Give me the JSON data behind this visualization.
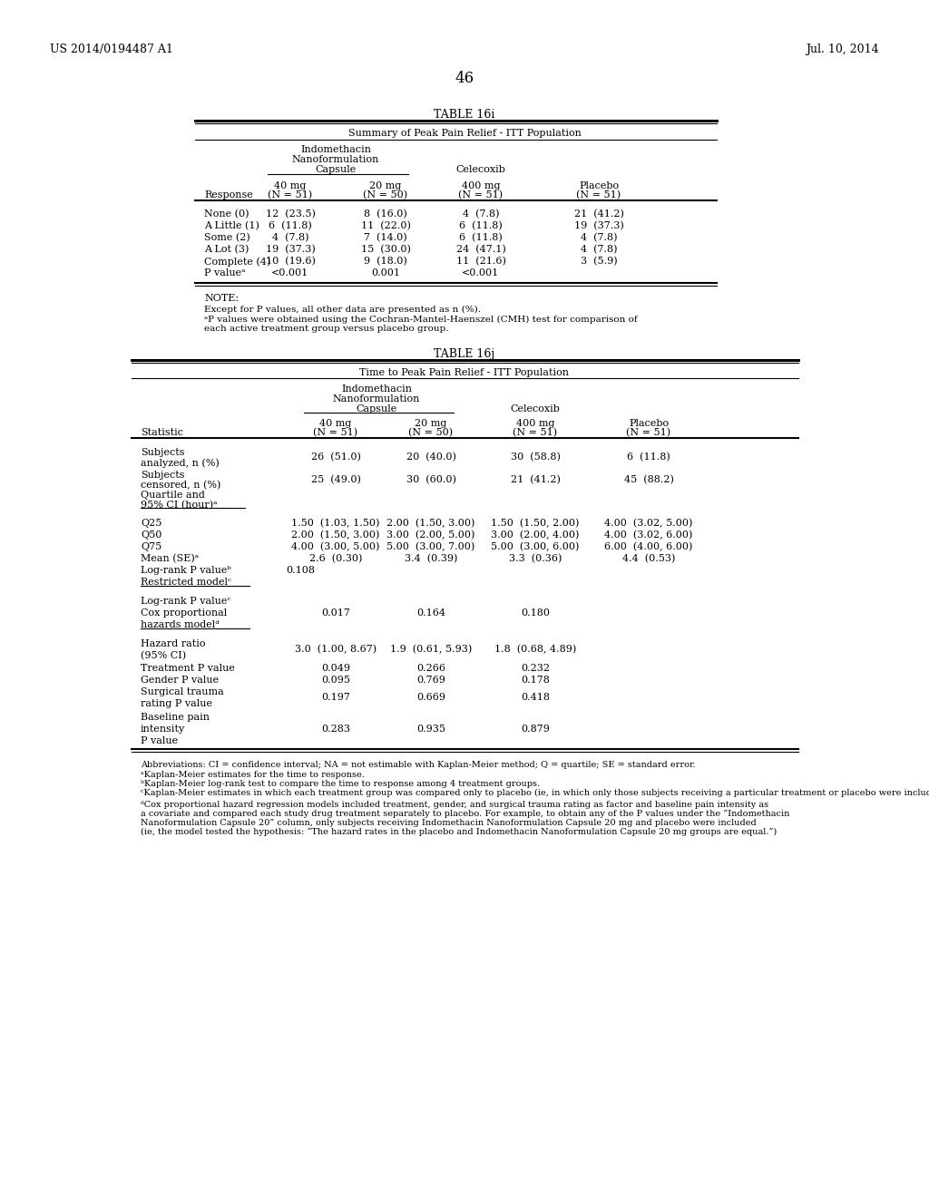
{
  "page_header_left": "US 2014/0194487 A1",
  "page_header_right": "Jul. 10, 2014",
  "page_number": "46",
  "bg_color": "#ffffff",
  "text_color": "#000000",
  "table16i_title": "TABLE 16i",
  "table16i_subtitle": "Summary of Peak Pain Relief - ITT Population",
  "table16i_rows": [
    [
      "None (0)",
      "12  (23.5)",
      "8  (16.0)",
      "4  (7.8)",
      "21  (41.2)"
    ],
    [
      "A Little (1)",
      "6  (11.8)",
      "11  (22.0)",
      "6  (11.8)",
      "19  (37.3)"
    ],
    [
      "Some (2)",
      "4  (7.8)",
      "7  (14.0)",
      "6  (11.8)",
      "4  (7.8)"
    ],
    [
      "A Lot (3)",
      "19  (37.3)",
      "15  (30.0)",
      "24  (47.1)",
      "4  (7.8)"
    ],
    [
      "Complete (4)",
      "10  (19.6)",
      "9  (18.0)",
      "11  (21.6)",
      "3  (5.9)"
    ],
    [
      "P valueᵃ",
      "<0.001",
      "0.001",
      "<0.001",
      ""
    ]
  ],
  "table16j_title": "TABLE 16j",
  "table16j_subtitle": "Time to Peak Pain Relief - ITT Population",
  "table16j_abbrev": "Abbreviations: CI = confidence interval; NA = not estimable with Kaplan-Meier method; Q = quartile; SE = standard error.",
  "table16j_note_a": "ᵃKaplan-Meier estimates for the time to response.",
  "table16j_note_b": "ᵇKaplan-Meier log-rank test to compare the time to response among 4 treatment groups.",
  "table16j_note_c": "ᶜKaplan-Meier estimates in which each treatment group was compared only to placebo (ie, in which only those subjects receiving a particular treatment or placebo were included in the analysis.)",
  "table16j_note_d1": "ᵈCox proportional hazard regression models included treatment, gender, and surgical trauma rating as factor and baseline pain intensity as",
  "table16j_note_d2": "a covariate and compared each study drug treatment separately to placebo. For example, to obtain any of the P values under the “Indomethacin",
  "table16j_note_d3": "Nanoformulation Capsule 20” column, only subjects receiving Indomethacin Nanoformulation Capsule 20 mg and placebo were included",
  "table16j_note_d4": "(ie, the model tested the hypothesis: “The hazard rates in the placebo and Indomethacin Nanoformulation Capsule 20 mg groups are equal.”)"
}
